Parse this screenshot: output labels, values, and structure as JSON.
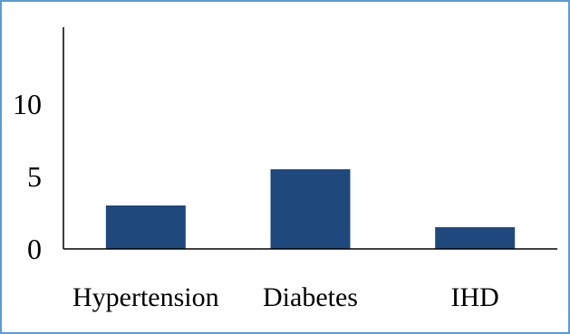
{
  "chart_data": {
    "type": "bar",
    "title": "",
    "xlabel": "",
    "ylabel": "",
    "categories": [
      "Hypertension",
      "Diabetes",
      "IHD"
    ],
    "values": [
      3,
      5.5,
      1.5
    ],
    "ylim": [
      0,
      15
    ],
    "yticks": [
      {
        "value": 0,
        "label": "0"
      },
      {
        "value": 5,
        "label": "5"
      },
      {
        "value": 10,
        "label": "10"
      }
    ],
    "bar_color": "#1f497d",
    "grid": false,
    "legend": "none"
  },
  "colors": {
    "frame_border": "#5b9bd5",
    "axis": "#000000"
  }
}
